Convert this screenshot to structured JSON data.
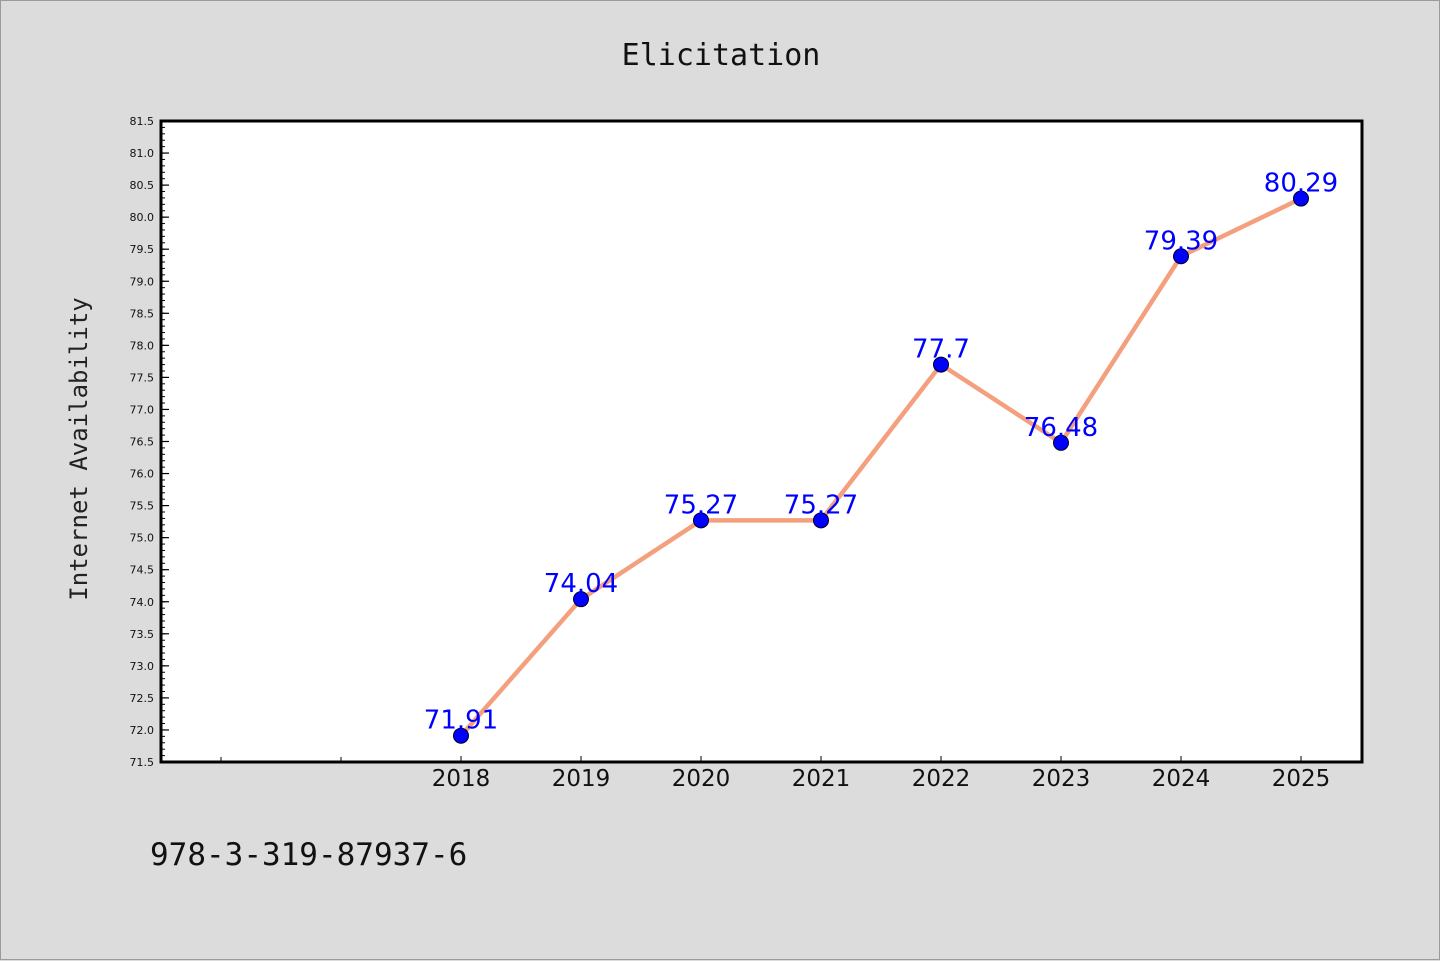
{
  "chart_data": {
    "type": "line",
    "title": "Elicitation",
    "xlabel": "",
    "ylabel": "Internet Availability",
    "categories": [
      "2018",
      "2019",
      "2020",
      "2021",
      "2022",
      "2023",
      "2024",
      "2025"
    ],
    "series": [
      {
        "values": [
          71.91,
          74.04,
          75.27,
          75.27,
          77.7,
          76.48,
          79.39,
          80.29
        ],
        "data_labels": [
          "71.91",
          "74.04",
          "75.27",
          "75.27",
          "77.7",
          "76.48",
          "79.39",
          "80.29"
        ]
      }
    ],
    "ylim": [
      71.5,
      81.5
    ],
    "yticks": [
      "71.5",
      "72.0",
      "72.5",
      "73.0",
      "73.5",
      "74.0",
      "74.5",
      "75.0",
      "75.5",
      "76.0",
      "76.5",
      "77.0",
      "77.5",
      "78.0",
      "78.5",
      "79.0",
      "79.5",
      "80.0",
      "80.5",
      "81.0",
      "81.5"
    ],
    "grid": false,
    "legend": "none",
    "line_color": "#f4a07e",
    "marker_color": "#0000ff",
    "label_color": "#0000ff"
  },
  "footer_text": "978-3-319-87937-6"
}
